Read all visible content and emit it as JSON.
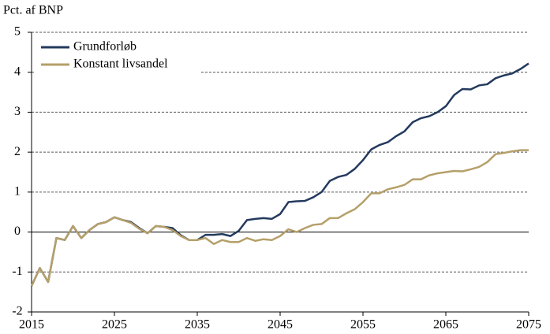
{
  "chart_data": {
    "type": "line",
    "y_label": "Pct. af BNP",
    "x": [
      2015,
      2016,
      2017,
      2018,
      2019,
      2020,
      2021,
      2022,
      2023,
      2024,
      2025,
      2026,
      2027,
      2028,
      2029,
      2030,
      2031,
      2032,
      2033,
      2034,
      2035,
      2036,
      2037,
      2038,
      2039,
      2040,
      2041,
      2042,
      2043,
      2044,
      2045,
      2046,
      2047,
      2048,
      2049,
      2050,
      2051,
      2052,
      2053,
      2054,
      2055,
      2056,
      2057,
      2058,
      2059,
      2060,
      2061,
      2062,
      2063,
      2064,
      2065,
      2066,
      2067,
      2068,
      2069,
      2070,
      2071,
      2072,
      2073,
      2074,
      2075
    ],
    "series": [
      {
        "name": "Grundforløb",
        "color": "#243a5e",
        "values": [
          -1.35,
          -0.9,
          -1.25,
          -0.15,
          -0.2,
          0.15,
          -0.15,
          0.05,
          0.2,
          0.25,
          0.37,
          0.3,
          0.25,
          0.1,
          -0.03,
          0.15,
          0.13,
          0.1,
          -0.08,
          -0.2,
          -0.2,
          -0.07,
          -0.07,
          -0.05,
          -0.1,
          0.03,
          0.3,
          0.33,
          0.35,
          0.33,
          0.45,
          0.75,
          0.77,
          0.78,
          0.87,
          1.0,
          1.28,
          1.38,
          1.43,
          1.58,
          1.8,
          2.07,
          2.18,
          2.25,
          2.4,
          2.52,
          2.75,
          2.85,
          2.9,
          3.0,
          3.15,
          3.43,
          3.58,
          3.57,
          3.67,
          3.7,
          3.85,
          3.92,
          3.97,
          4.08,
          4.22
        ]
      },
      {
        "name": "Konstant livsandel",
        "color": "#b5a06a",
        "values": [
          -1.35,
          -0.9,
          -1.25,
          -0.15,
          -0.2,
          0.15,
          -0.15,
          0.05,
          0.2,
          0.25,
          0.37,
          0.3,
          0.23,
          0.08,
          -0.03,
          0.15,
          0.13,
          0.05,
          -0.1,
          -0.2,
          -0.2,
          -0.15,
          -0.3,
          -0.2,
          -0.25,
          -0.25,
          -0.15,
          -0.22,
          -0.18,
          -0.2,
          -0.1,
          0.07,
          0.0,
          0.1,
          0.18,
          0.2,
          0.35,
          0.35,
          0.47,
          0.57,
          0.75,
          0.97,
          0.97,
          1.07,
          1.12,
          1.18,
          1.32,
          1.32,
          1.42,
          1.47,
          1.5,
          1.53,
          1.52,
          1.57,
          1.63,
          1.75,
          1.95,
          1.98,
          2.02,
          2.05,
          2.05
        ]
      }
    ],
    "xlim": [
      2015,
      2075
    ],
    "xticks": [
      2015,
      2025,
      2035,
      2045,
      2055,
      2065,
      2075
    ],
    "ylim": [
      -2,
      5
    ],
    "yticks": [
      -2,
      -1,
      0,
      1,
      2,
      3,
      4,
      5
    ],
    "grid": true,
    "legend": "upper left"
  }
}
